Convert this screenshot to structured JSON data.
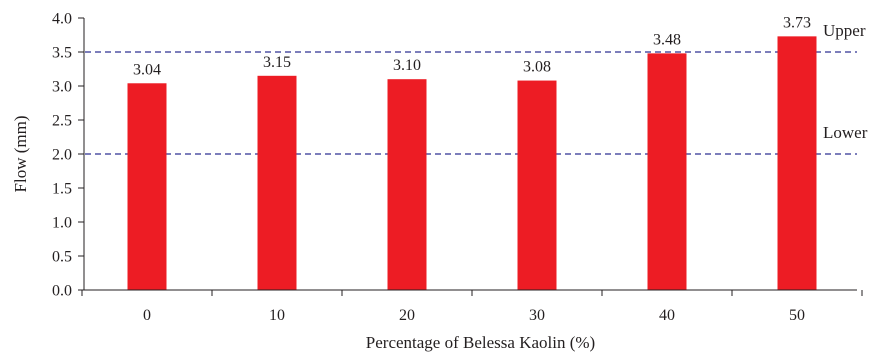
{
  "chart_data": {
    "type": "bar",
    "categories": [
      "0",
      "10",
      "20",
      "30",
      "40",
      "50"
    ],
    "values": [
      3.04,
      3.15,
      3.1,
      3.08,
      3.48,
      3.73
    ],
    "data_labels": [
      "3.04",
      "3.15",
      "3.10",
      "3.08",
      "3.48",
      "3.73"
    ],
    "xlabel": "Percentage of Belessa Kaolin (%)",
    "ylabel": "Flow (mm)",
    "ylim": [
      0,
      4.0
    ],
    "yticks": [
      "0.0",
      "0.5",
      "1.0",
      "1.5",
      "2.0",
      "2.5",
      "3.0",
      "3.5",
      "4.0"
    ],
    "grid": false,
    "legend": "none",
    "bar_color": "#ed1c24",
    "reference_lines": [
      {
        "label": "Upper",
        "value": 3.5,
        "color": "#2e3192"
      },
      {
        "label": "Lower",
        "value": 2.0,
        "color": "#2e3192"
      }
    ]
  }
}
